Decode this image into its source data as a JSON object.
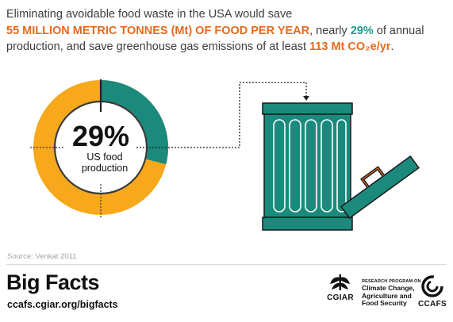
{
  "headline": {
    "line1": "Eliminating avoidable food waste in the USA would save",
    "highlight": "55 MILLION METRIC TONNES (Mt) OF FOOD PER YEAR",
    "text2": ", nearly ",
    "percent": "29%",
    "text3": " of annual production, and save greenhouse gas emissions of at least ",
    "emissions": "113 Mt CO₂e/yr",
    "text4": "."
  },
  "donut": {
    "value_label": "29%",
    "caption_line1": "US food",
    "caption_line2": "production",
    "share": 0.29
  },
  "source": "Source: Venkat 2011",
  "brand": {
    "title": "Big Facts",
    "url": "ccafs.cgiar.org/bigfacts"
  },
  "logos": {
    "cgiar": "CGIAR",
    "program_small": "RESEARCH PROGRAM ON",
    "program_line1": "Climate Change,",
    "program_line2": "Agriculture and",
    "program_line3": "Food Security",
    "ccafs": "CCAFS"
  },
  "colors": {
    "teal": "#1b8a7c",
    "orange": "#f7a81b",
    "highlight": "#e46a1f",
    "dark": "#111111"
  }
}
